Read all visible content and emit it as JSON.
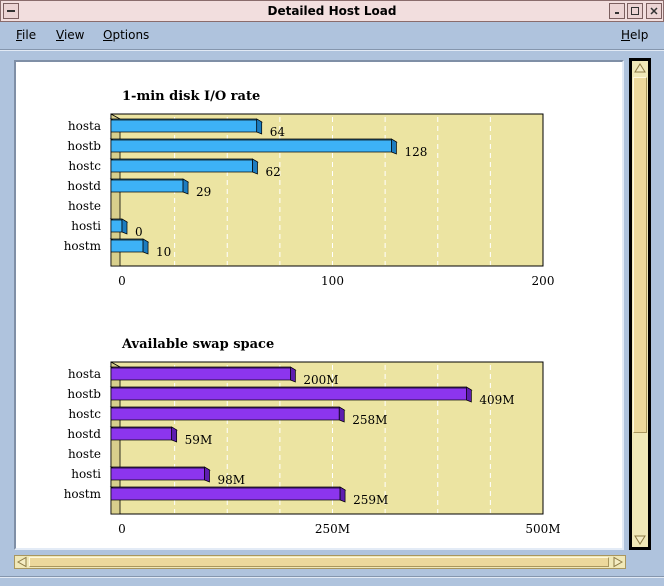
{
  "window": {
    "title": "Detailed Host Load"
  },
  "menubar": {
    "file": {
      "accel": "F",
      "rest": "ile"
    },
    "view": {
      "accel": "V",
      "rest": "iew"
    },
    "options": {
      "accel": "O",
      "rest": "ptions"
    },
    "help": {
      "accel": "H",
      "rest": "elp"
    }
  },
  "colors": {
    "plot_bg": "#ece4a2",
    "disk_bar": "#3db2f7",
    "disk_bar_dark": "#1c7cc0",
    "swap_bar": "#8c35ee",
    "swap_bar_dark": "#5e1eb0"
  },
  "chart_data": [
    {
      "type": "bar",
      "orientation": "horizontal",
      "title": "1-min disk I/O rate",
      "categories": [
        "hosta",
        "hostb",
        "hostc",
        "hostd",
        "hoste",
        "hosti",
        "hostm"
      ],
      "values": [
        64,
        128,
        62,
        29,
        null,
        0,
        10
      ],
      "value_labels": [
        "64",
        "128",
        "62",
        "29",
        "",
        "0",
        "10"
      ],
      "xlim": [
        0,
        200
      ],
      "xticks": [
        0,
        100,
        200
      ],
      "xtick_labels": [
        "0",
        "100",
        "200"
      ],
      "grid": "vertical dashed"
    },
    {
      "type": "bar",
      "orientation": "horizontal",
      "title": "Available swap space",
      "categories": [
        "hosta",
        "hostb",
        "hostc",
        "hostd",
        "hoste",
        "hosti",
        "hostm"
      ],
      "values": [
        200,
        409,
        258,
        59,
        null,
        98,
        259
      ],
      "value_labels": [
        "200M",
        "409M",
        "258M",
        "59M",
        "",
        "98M",
        "259M"
      ],
      "xlim": [
        0,
        500
      ],
      "xticks": [
        0,
        250,
        500
      ],
      "xtick_labels": [
        "0",
        "250M",
        "500M"
      ],
      "grid": "vertical dashed"
    }
  ]
}
